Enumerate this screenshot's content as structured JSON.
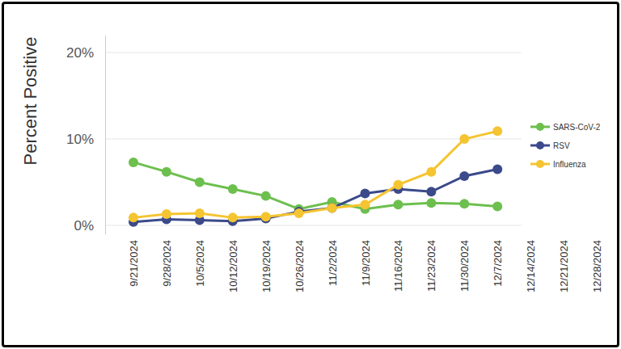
{
  "chart_data": {
    "type": "line",
    "y_label": "Percent Positive",
    "categories": [
      "9/21/2024",
      "9/28/2024",
      "10/5/2024",
      "10/12/2024",
      "10/19/2024",
      "10/26/2024",
      "11/2/2024",
      "11/9/2024",
      "11/16/2024",
      "11/23/2024",
      "11/30/2024",
      "12/7/2024",
      "12/14/2024",
      "12/21/2024",
      "12/28/2024"
    ],
    "series": [
      {
        "name": "SARS-CoV-2",
        "color": "#6dbf4e",
        "values": [
          7.3,
          6.2,
          5.0,
          4.2,
          3.4,
          1.9,
          2.7,
          1.9,
          2.4,
          2.6,
          2.5,
          2.2,
          null,
          null,
          null
        ]
      },
      {
        "name": "RSV",
        "color": "#3b4a8a",
        "values": [
          0.4,
          0.7,
          0.6,
          0.5,
          0.8,
          1.6,
          2.0,
          3.7,
          4.2,
          3.9,
          5.7,
          6.5,
          null,
          null,
          null
        ]
      },
      {
        "name": "Influenza",
        "color": "#f5c431",
        "values": [
          0.9,
          1.3,
          1.4,
          0.9,
          1.0,
          1.4,
          2.0,
          2.4,
          4.7,
          6.2,
          10.0,
          10.9,
          null,
          null,
          null
        ]
      }
    ],
    "ylim": [
      -1,
      22
    ],
    "yticks": [
      {
        "value": 0,
        "label": "0%"
      },
      {
        "value": 10,
        "label": "10%"
      },
      {
        "value": 20,
        "label": "20%"
      }
    ],
    "grid": true,
    "legend": "right",
    "marker": "circle",
    "line_style": "solid"
  }
}
